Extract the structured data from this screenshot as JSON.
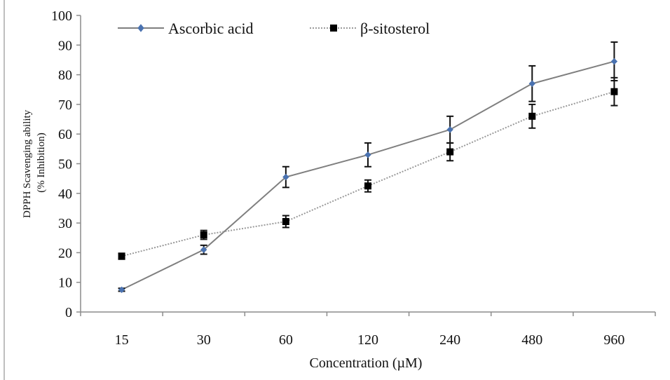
{
  "chart_data": {
    "type": "line",
    "title": "",
    "xlabel": "Concentration (µM)",
    "ylabel_lines": [
      "DPPH Scavenging ability",
      "(% Inhibition)"
    ],
    "categories": [
      "15",
      "30",
      "60",
      "120",
      "240",
      "480",
      "960"
    ],
    "ylim": [
      0,
      100
    ],
    "yticks": [
      0,
      10,
      20,
      30,
      40,
      50,
      60,
      70,
      80,
      90,
      100
    ],
    "grid": false,
    "legend_position": "top-left",
    "series": [
      {
        "name": "Ascorbic acid",
        "values": [
          7.5,
          21,
          45.5,
          53,
          61.5,
          77,
          84.5
        ],
        "errors": [
          0.5,
          1.5,
          3.5,
          4,
          4.5,
          6,
          6.5
        ],
        "line_color": "#7f7f7f",
        "marker_color": "#4a72b0",
        "line_style": "solid",
        "marker": "diamond"
      },
      {
        "name": "β-sitosterol",
        "values": [
          18.8,
          26,
          30.5,
          42.5,
          54,
          66,
          74.3
        ],
        "errors": [
          1,
          1.5,
          2,
          2,
          3,
          4,
          4.7
        ],
        "line_color": "#9a9a9a",
        "marker_color": "#000000",
        "line_style": "dotted",
        "marker": "square"
      }
    ]
  }
}
